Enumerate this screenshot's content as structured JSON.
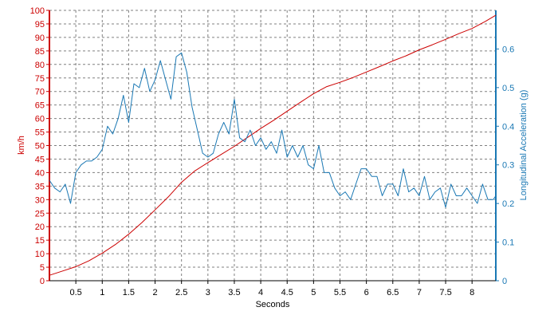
{
  "chart_data": {
    "type": "line",
    "xlabel": "Seconds",
    "ylabel_left": "km/h",
    "ylabel_right": "Longitudinal Acceleration (g)",
    "xlim": [
      0,
      8.45
    ],
    "ylim_left": [
      0,
      100
    ],
    "ylim_right": [
      0,
      0.7
    ],
    "x_ticks": [
      0.5,
      1,
      1.5,
      2,
      2.5,
      3,
      3.5,
      4,
      4.5,
      5,
      5.5,
      6,
      6.5,
      7,
      7.5,
      8
    ],
    "x_tick_labels": [
      "0.5",
      "1",
      "1.5",
      "2",
      "2.5",
      "3",
      "3.5",
      "4",
      "4.5",
      "5",
      "5.5",
      "6",
      "6.5",
      "7",
      "7.5",
      "8"
    ],
    "y_left_ticks": [
      0,
      5,
      10,
      15,
      20,
      25,
      30,
      35,
      40,
      45,
      50,
      55,
      60,
      65,
      70,
      75,
      80,
      85,
      90,
      95,
      100
    ],
    "y_left_tick_labels": [
      "0",
      "5",
      "10",
      "15",
      "20",
      "25",
      "30",
      "35",
      "40",
      "45",
      "50",
      "55",
      "60",
      "65",
      "70",
      "75",
      "80",
      "85",
      "90",
      "95",
      "100"
    ],
    "y_right_ticks": [
      0,
      0.1,
      0.2,
      0.3,
      0.4,
      0.5,
      0.6
    ],
    "y_right_tick_labels": [
      "0",
      "0.1",
      "0.2",
      "0.3",
      "0.4",
      "0.5",
      "0.6"
    ],
    "grid": true,
    "colors": {
      "speed": "#cc0000",
      "accel": "#1a78b4",
      "grid": "#808080",
      "left_axis": "#cc0000",
      "right_axis": "#1a78b4"
    },
    "series": [
      {
        "axis": "left",
        "x": [
          0,
          0.25,
          0.5,
          0.75,
          1,
          1.25,
          1.5,
          1.75,
          2,
          2.25,
          2.5,
          2.75,
          3,
          3.25,
          3.5,
          3.75,
          4,
          4.25,
          4.5,
          4.75,
          5,
          5.25,
          5.5,
          5.75,
          6,
          6.25,
          6.5,
          6.75,
          7,
          7.25,
          7.5,
          7.75,
          8,
          8.25,
          8.45
        ],
        "values": [
          2,
          3.6,
          5.2,
          7.4,
          10.2,
          13.4,
          17.2,
          21.5,
          26.2,
          31,
          36.4,
          40.6,
          43.7,
          46.7,
          49.7,
          53,
          56.3,
          59.4,
          62.7,
          66,
          69.2,
          71.8,
          73.4,
          75.2,
          77.2,
          79.2,
          81.3,
          83.2,
          85.4,
          87.3,
          89.3,
          91.4,
          93.3,
          95.9,
          98.2
        ]
      },
      {
        "axis": "right",
        "x": [
          0,
          0.1,
          0.2,
          0.3,
          0.4,
          0.5,
          0.6,
          0.7,
          0.8,
          0.9,
          1,
          1.1,
          1.2,
          1.3,
          1.4,
          1.5,
          1.6,
          1.7,
          1.8,
          1.9,
          2,
          2.1,
          2.2,
          2.3,
          2.4,
          2.5,
          2.6,
          2.7,
          2.8,
          2.9,
          3,
          3.1,
          3.2,
          3.3,
          3.4,
          3.5,
          3.6,
          3.7,
          3.8,
          3.9,
          4,
          4.1,
          4.2,
          4.3,
          4.4,
          4.5,
          4.6,
          4.7,
          4.8,
          4.9,
          5,
          5.1,
          5.2,
          5.3,
          5.4,
          5.5,
          5.6,
          5.7,
          5.8,
          5.9,
          6,
          6.1,
          6.2,
          6.3,
          6.4,
          6.5,
          6.6,
          6.7,
          6.8,
          6.9,
          7,
          7.1,
          7.2,
          7.3,
          7.4,
          7.5,
          7.6,
          7.7,
          7.8,
          7.9,
          8,
          8.1,
          8.2,
          8.3,
          8.4,
          8.45
        ],
        "values": [
          0.26,
          0.24,
          0.23,
          0.25,
          0.2,
          0.28,
          0.3,
          0.31,
          0.31,
          0.32,
          0.34,
          0.4,
          0.38,
          0.42,
          0.48,
          0.41,
          0.51,
          0.5,
          0.55,
          0.49,
          0.52,
          0.57,
          0.52,
          0.47,
          0.58,
          0.59,
          0.54,
          0.45,
          0.39,
          0.33,
          0.32,
          0.33,
          0.38,
          0.41,
          0.38,
          0.47,
          0.37,
          0.36,
          0.39,
          0.35,
          0.37,
          0.34,
          0.36,
          0.33,
          0.39,
          0.32,
          0.35,
          0.32,
          0.35,
          0.3,
          0.29,
          0.35,
          0.28,
          0.28,
          0.24,
          0.22,
          0.23,
          0.21,
          0.25,
          0.29,
          0.29,
          0.27,
          0.27,
          0.22,
          0.25,
          0.25,
          0.22,
          0.29,
          0.23,
          0.24,
          0.22,
          0.27,
          0.21,
          0.23,
          0.24,
          0.19,
          0.25,
          0.22,
          0.22,
          0.24,
          0.22,
          0.2,
          0.25,
          0.21,
          0.21,
          0.22
        ]
      }
    ]
  }
}
